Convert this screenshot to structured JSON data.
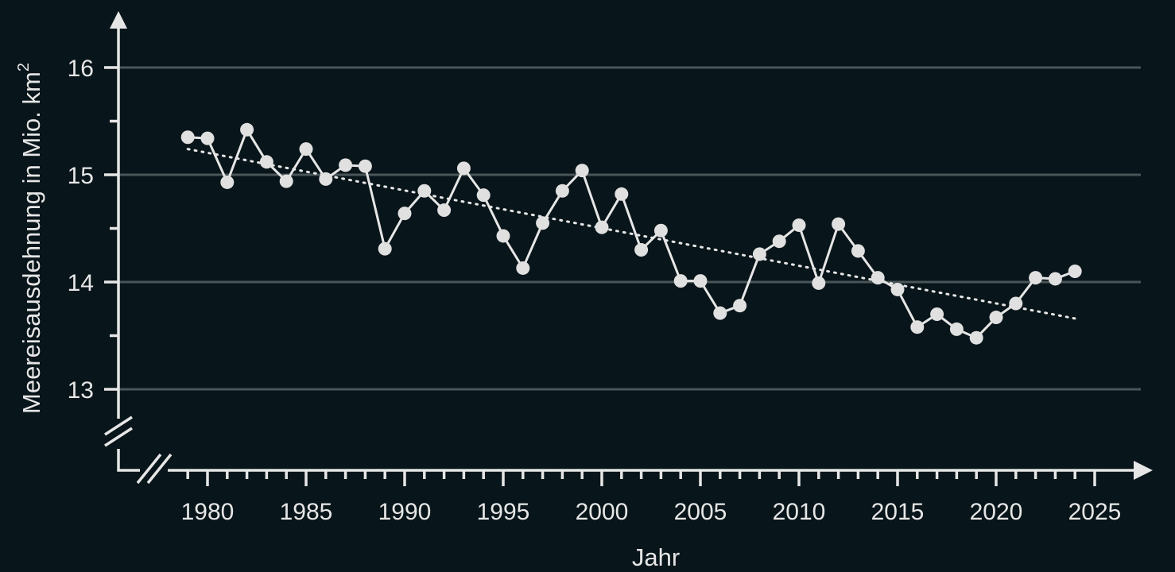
{
  "chart_data": {
    "type": "line",
    "title": "",
    "xlabel": "Jahr",
    "ylabel": "Meereisausdehnung in Mio. km",
    "ylabel_sup": "2",
    "xlim": [
      1977,
      2027
    ],
    "ylim": [
      12.5,
      16.5
    ],
    "x_ticks": [
      1980,
      1985,
      1990,
      1995,
      2000,
      2005,
      2010,
      2015,
      2020,
      2025
    ],
    "y_ticks": [
      13,
      14,
      15,
      16
    ],
    "grid": "horizontal",
    "axis_breaks": [
      "x",
      "y"
    ],
    "series": [
      {
        "x": [
          1979,
          1980,
          1981,
          1982,
          1983,
          1984,
          1985,
          1986,
          1987,
          1988,
          1989,
          1990,
          1991,
          1992,
          1993,
          1994,
          1995,
          1996,
          1997,
          1998,
          1999,
          2000,
          2001,
          2002,
          2003,
          2004,
          2005,
          2006,
          2007,
          2008,
          2009,
          2010,
          2011,
          2012,
          2013,
          2014,
          2015,
          2016,
          2017,
          2018,
          2019,
          2020,
          2021,
          2022,
          2023,
          2024
        ],
        "values": [
          15.35,
          15.34,
          14.93,
          15.42,
          15.12,
          14.94,
          15.24,
          14.96,
          15.09,
          15.08,
          14.31,
          14.64,
          14.85,
          14.67,
          15.06,
          14.81,
          14.43,
          14.13,
          14.55,
          14.85,
          15.04,
          14.51,
          14.82,
          14.3,
          14.48,
          14.01,
          14.01,
          13.71,
          13.78,
          14.26,
          14.38,
          14.53,
          13.99,
          14.54,
          14.29,
          14.04,
          13.93,
          13.58,
          13.7,
          13.56,
          13.48,
          13.67,
          13.8,
          14.04,
          14.03,
          14.1
        ]
      }
    ],
    "trend": {
      "x": [
        1979,
        2024
      ],
      "values": [
        15.24,
        13.66
      ]
    }
  }
}
